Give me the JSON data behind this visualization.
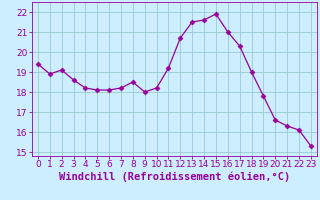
{
  "x": [
    0,
    1,
    2,
    3,
    4,
    5,
    6,
    7,
    8,
    9,
    10,
    11,
    12,
    13,
    14,
    15,
    16,
    17,
    18,
    19,
    20,
    21,
    22,
    23
  ],
  "y": [
    19.4,
    18.9,
    19.1,
    18.6,
    18.2,
    18.1,
    18.1,
    18.2,
    18.5,
    18.0,
    18.2,
    19.2,
    20.7,
    21.5,
    21.6,
    21.9,
    21.0,
    20.3,
    19.0,
    17.8,
    16.6,
    16.3,
    16.1,
    15.3
  ],
  "line_color": "#990099",
  "marker": "D",
  "marker_size": 2.5,
  "bg_color": "#cceeff",
  "grid_color": "#99cccc",
  "xlabel": "Windchill (Refroidissement éolien,°C)",
  "xlabel_color": "#990099",
  "ylim": [
    14.8,
    22.5
  ],
  "xlim": [
    -0.5,
    23.5
  ],
  "yticks": [
    15,
    16,
    17,
    18,
    19,
    20,
    21,
    22
  ],
  "xticks": [
    0,
    1,
    2,
    3,
    4,
    5,
    6,
    7,
    8,
    9,
    10,
    11,
    12,
    13,
    14,
    15,
    16,
    17,
    18,
    19,
    20,
    21,
    22,
    23
  ],
  "tick_color": "#990099",
  "tick_fontsize": 6.5,
  "xlabel_fontsize": 7.5
}
